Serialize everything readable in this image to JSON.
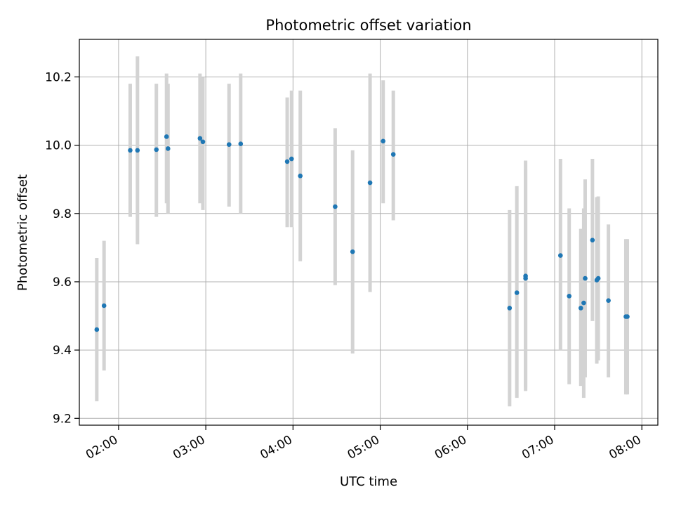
{
  "chart_data": {
    "type": "scatter",
    "title": "Photometric offset variation",
    "xlabel": "UTC time",
    "ylabel": "Photometric offset",
    "x_unit": "UTC time (HH:MM)",
    "xlim": [
      "01:33",
      "08:11"
    ],
    "ylim": [
      9.18,
      10.31
    ],
    "grid": true,
    "legend": "none",
    "x_ticks": [
      "02:00",
      "03:00",
      "04:00",
      "05:00",
      "06:00",
      "07:00",
      "08:00"
    ],
    "y_ticks": [
      9.2,
      9.4,
      9.6,
      9.8,
      10.0,
      10.2
    ],
    "point_color": "#1f77b4",
    "errorbar_color": "#d3d3d3",
    "points": [
      {
        "x": "01:45",
        "y": 9.46,
        "low": 9.25,
        "high": 9.67
      },
      {
        "x": "01:50",
        "y": 9.53,
        "low": 9.34,
        "high": 9.72
      },
      {
        "x": "02:08",
        "y": 9.985,
        "low": 9.79,
        "high": 10.18
      },
      {
        "x": "02:13",
        "y": 9.985,
        "low": 9.71,
        "high": 10.26
      },
      {
        "x": "02:26",
        "y": 9.987,
        "low": 9.79,
        "high": 10.18
      },
      {
        "x": "02:33",
        "y": 10.025,
        "low": 9.83,
        "high": 10.21
      },
      {
        "x": "02:34",
        "y": 9.99,
        "low": 9.8,
        "high": 10.18
      },
      {
        "x": "02:56",
        "y": 10.02,
        "low": 9.83,
        "high": 10.21
      },
      {
        "x": "02:58",
        "y": 10.01,
        "low": 9.81,
        "high": 10.2
      },
      {
        "x": "03:16",
        "y": 10.002,
        "low": 9.82,
        "high": 10.18
      },
      {
        "x": "03:24",
        "y": 10.004,
        "low": 9.8,
        "high": 10.21
      },
      {
        "x": "03:56",
        "y": 9.952,
        "low": 9.76,
        "high": 10.14
      },
      {
        "x": "03:59",
        "y": 9.96,
        "low": 9.76,
        "high": 10.16
      },
      {
        "x": "04:05",
        "y": 9.91,
        "low": 9.66,
        "high": 10.16
      },
      {
        "x": "04:29",
        "y": 9.82,
        "low": 9.59,
        "high": 10.05
      },
      {
        "x": "04:41",
        "y": 9.688,
        "low": 9.39,
        "high": 9.985
      },
      {
        "x": "04:53",
        "y": 9.89,
        "low": 9.57,
        "high": 10.21
      },
      {
        "x": "05:02",
        "y": 10.012,
        "low": 9.83,
        "high": 10.19
      },
      {
        "x": "05:09",
        "y": 9.973,
        "low": 9.78,
        "high": 10.16
      },
      {
        "x": "06:29",
        "y": 9.523,
        "low": 9.235,
        "high": 9.81
      },
      {
        "x": "06:34",
        "y": 9.568,
        "low": 9.26,
        "high": 9.88
      },
      {
        "x": "06:40",
        "y": 9.61,
        "low": 9.28,
        "high": 9.93
      },
      {
        "x": "06:40",
        "y": 9.617,
        "low": 9.29,
        "high": 9.955
      },
      {
        "x": "07:04",
        "y": 9.677,
        "low": 9.4,
        "high": 9.96
      },
      {
        "x": "07:10",
        "y": 9.558,
        "low": 9.3,
        "high": 9.815
      },
      {
        "x": "07:18",
        "y": 9.523,
        "low": 9.295,
        "high": 9.755
      },
      {
        "x": "07:20",
        "y": 9.538,
        "low": 9.26,
        "high": 9.815
      },
      {
        "x": "07:21",
        "y": 9.61,
        "low": 9.32,
        "high": 9.9
      },
      {
        "x": "07:26",
        "y": 9.722,
        "low": 9.485,
        "high": 9.96
      },
      {
        "x": "07:29",
        "y": 9.605,
        "low": 9.36,
        "high": 9.848
      },
      {
        "x": "07:30",
        "y": 9.61,
        "low": 9.37,
        "high": 9.85
      },
      {
        "x": "07:37",
        "y": 9.545,
        "low": 9.32,
        "high": 9.768
      },
      {
        "x": "07:49",
        "y": 9.498,
        "low": 9.27,
        "high": 9.725
      },
      {
        "x": "07:50",
        "y": 9.498,
        "low": 9.27,
        "high": 9.725
      }
    ]
  }
}
